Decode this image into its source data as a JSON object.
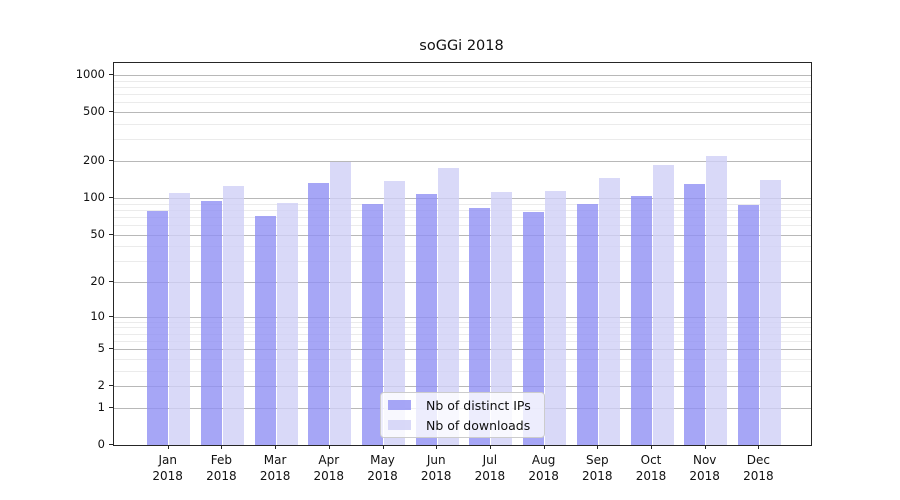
{
  "chart_data": {
    "type": "bar",
    "title": "soGGi 2018",
    "year_label": "2018",
    "categories": [
      "Jan",
      "Feb",
      "Mar",
      "Apr",
      "May",
      "Jun",
      "Jul",
      "Aug",
      "Sep",
      "Oct",
      "Nov",
      "Dec"
    ],
    "series": [
      {
        "name": "Nb of distinct IPs",
        "color": "#a6a6f6",
        "values": [
          78,
          95,
          71,
          133,
          90,
          108,
          82,
          77,
          89,
          103,
          130,
          87
        ]
      },
      {
        "name": "Nb of downloads",
        "color": "#d9d9f8",
        "values": [
          110,
          126,
          91,
          197,
          137,
          174,
          112,
          114,
          145,
          187,
          220,
          139
        ]
      }
    ],
    "yscale": "log1p",
    "ylim": [
      0,
      1250
    ],
    "yticks": [
      0,
      1,
      2,
      5,
      10,
      20,
      50,
      100,
      200,
      500,
      1000
    ],
    "minor_gridline_values": [
      3,
      4,
      6,
      7,
      8,
      9,
      30,
      40,
      60,
      70,
      80,
      90,
      300,
      400,
      600,
      700,
      800,
      900
    ],
    "grid": "on",
    "legend_position": "lower center",
    "xlabel": "",
    "ylabel": ""
  },
  "colors": {
    "major_grid": "#b8b8b8",
    "minor_grid": "#ebebeb",
    "spine": "#262626",
    "text": "#111111"
  }
}
